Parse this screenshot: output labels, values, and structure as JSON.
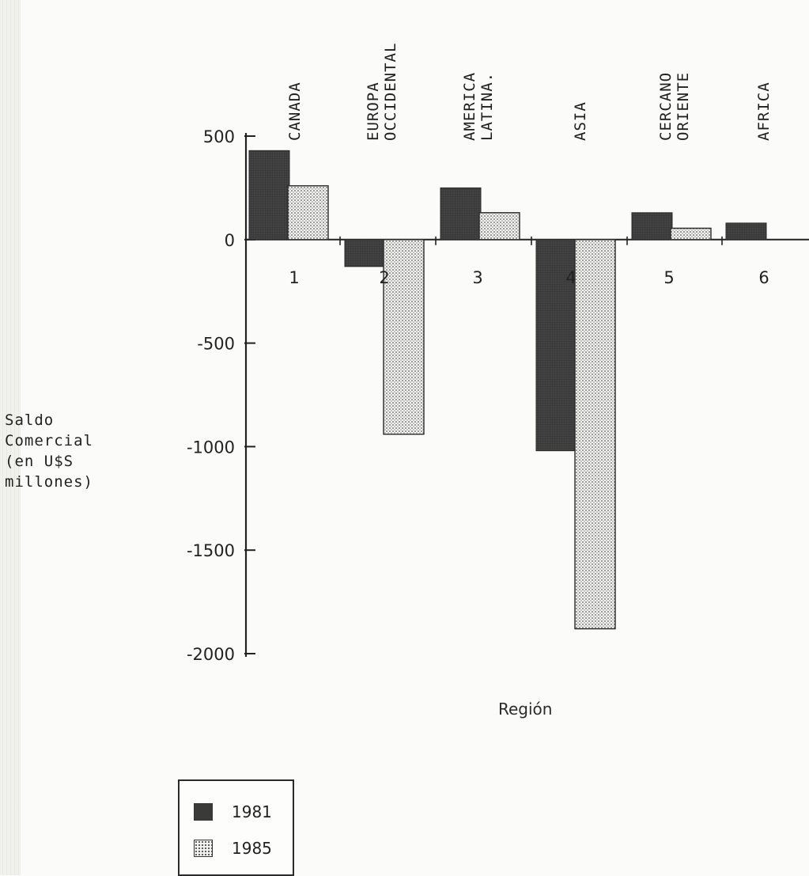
{
  "chart_data": {
    "type": "bar",
    "categories": [
      "1",
      "2",
      "3",
      "4",
      "5",
      "6"
    ],
    "region_names": [
      [
        "CANADA"
      ],
      [
        "EUROPA",
        "OCCIDENTAL"
      ],
      [
        "AMERICA",
        "LATINA."
      ],
      [
        "ASIA"
      ],
      [
        "CERCANO",
        "ORIENTE"
      ],
      [
        "AFRICA"
      ]
    ],
    "series": [
      {
        "name": "1981",
        "values": [
          430,
          -130,
          250,
          -1020,
          130,
          80
        ],
        "color": "#3a3a3a"
      },
      {
        "name": "1985",
        "values": [
          260,
          -940,
          130,
          -1880,
          55,
          0
        ],
        "color": "#d8d8d2"
      }
    ],
    "ylabel": [
      "Saldo",
      "Comercial",
      "(en U$S",
      "millones)"
    ],
    "xlabel": "Región",
    "ylim": [
      -2000,
      500
    ],
    "yticks": [
      500,
      0,
      -500,
      -1000,
      -1500,
      -2000
    ],
    "ytick_labels": [
      "500",
      "0",
      "-500",
      "-1000",
      "-1500",
      "-2000"
    ],
    "grid": false,
    "legend_position": "bottom-left"
  }
}
